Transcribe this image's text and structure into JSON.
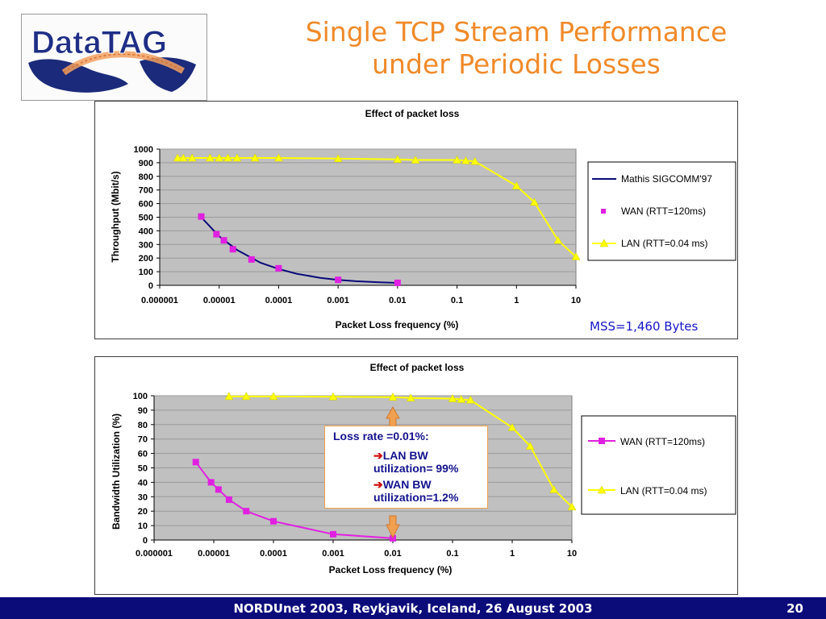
{
  "logo": {
    "text": "DataTAG"
  },
  "slide": {
    "title_line1": "Single TCP Stream Performance",
    "title_line2": "under Periodic Losses",
    "mss_note": "MSS=1,460 Bytes",
    "footer": "NORDUnet 2003, Reykjavik, Iceland, 26 August 2003",
    "page_number": "20",
    "title_color": "#f08a2a",
    "footer_bg": "#0b0b7a"
  },
  "callout": {
    "title": "Loss rate =0.01%:",
    "arrow": "➔",
    "line1a": "LAN BW",
    "line1b": "utilization= 99%",
    "line2a": "WAN BW",
    "line2b": "utilization=1.2%"
  },
  "chart_data": [
    {
      "type": "line",
      "title": "Effect of packet loss",
      "xlabel": "Packet Loss frequency (%)",
      "ylabel": "Throughput (Mbit/s)",
      "x_scale": "log",
      "xlim": [
        1e-06,
        10
      ],
      "ylim": [
        0,
        1000
      ],
      "x_ticks": [
        "0.000001",
        "0.00001",
        "0.0001",
        "0.001",
        "0.01",
        "0.1",
        "1",
        "10"
      ],
      "y_ticks": [
        "0",
        "100",
        "200",
        "300",
        "400",
        "500",
        "600",
        "700",
        "800",
        "900",
        "1000"
      ],
      "grid": true,
      "legend_position": "right",
      "series": [
        {
          "name": "Mathis SIGCOMM'97",
          "color": "#0a0a78",
          "marker": "none",
          "x": [
            5e-06,
            1e-05,
            2e-05,
            5e-05,
            0.0001,
            0.0002,
            0.0005,
            0.001,
            0.002,
            0.005,
            0.01
          ],
          "y": [
            500,
            360,
            260,
            165,
            120,
            85,
            55,
            40,
            30,
            22,
            18
          ]
        },
        {
          "name": "WAN (RTT=120ms)",
          "color": "#e020e0",
          "marker": "square",
          "line": false,
          "x": [
            5e-06,
            9e-06,
            1.2e-05,
            1.7e-05,
            3.5e-05,
            0.0001,
            0.001,
            0.01
          ],
          "y": [
            505,
            375,
            330,
            265,
            190,
            125,
            40,
            18
          ]
        },
        {
          "name": "LAN (RTT=0.04 ms)",
          "color": "#ffff00",
          "marker": "triangle",
          "x": [
            2e-06,
            2.5e-06,
            3.5e-06,
            7e-06,
            1e-05,
            1.4e-05,
            2e-05,
            4e-05,
            0.0001,
            0.001,
            0.01,
            0.02,
            0.1,
            0.14,
            0.2,
            1,
            2,
            5,
            10
          ],
          "y": [
            935,
            935,
            935,
            935,
            935,
            935,
            935,
            935,
            935,
            930,
            925,
            920,
            920,
            915,
            910,
            730,
            610,
            330,
            210
          ]
        }
      ]
    },
    {
      "type": "line",
      "title": "Effect of packet loss",
      "xlabel": "Packet Loss frequency (%)",
      "ylabel": "Bandwidth Utilization (%)",
      "x_scale": "log",
      "xlim": [
        1e-06,
        10
      ],
      "ylim": [
        0,
        100
      ],
      "x_ticks": [
        "0.000001",
        "0.00001",
        "0.0001",
        "0.001",
        "0.01",
        "0.1",
        "1",
        "10"
      ],
      "y_ticks": [
        "0",
        "10",
        "20",
        "30",
        "40",
        "50",
        "60",
        "70",
        "80",
        "90",
        "100"
      ],
      "grid": true,
      "legend_position": "right",
      "series": [
        {
          "name": "WAN (RTT=120ms)",
          "color": "#e020e0",
          "marker": "square",
          "x": [
            5e-06,
            9e-06,
            1.2e-05,
            1.8e-05,
            3.5e-05,
            0.0001,
            0.001,
            0.01
          ],
          "y": [
            54,
            40,
            35,
            28,
            20,
            13,
            4,
            1.2
          ]
        },
        {
          "name": "LAN (RTT=0.04 ms)",
          "color": "#ffff00",
          "marker": "triangle",
          "x": [
            1.8e-05,
            3.5e-05,
            0.0001,
            0.001,
            0.01,
            0.02,
            0.1,
            0.14,
            0.2,
            1,
            2,
            5,
            10
          ],
          "y": [
            99.5,
            99.5,
            99.5,
            99.3,
            99,
            98.5,
            98,
            97.5,
            97,
            78,
            65,
            35,
            23
          ]
        }
      ]
    }
  ]
}
